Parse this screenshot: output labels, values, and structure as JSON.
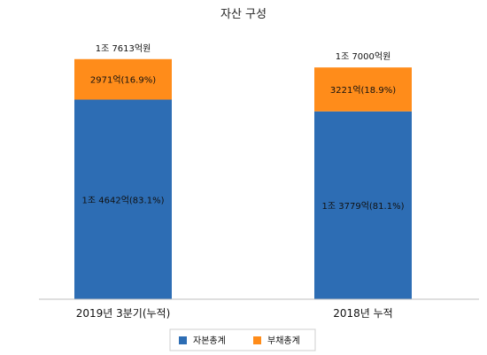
{
  "chart_data": {
    "type": "bar",
    "stacked": true,
    "title": "자산 구성",
    "categories": [
      "2019년 3분기(누적)",
      "2018년 누적"
    ],
    "totals": [
      17613,
      17000
    ],
    "total_labels": [
      "1조 7613억원",
      "1조 7000억원"
    ],
    "series": [
      {
        "name": "자본총계",
        "color": "#2D6DB4",
        "values": [
          14642,
          13779
        ],
        "labels": [
          "1조 4642억(83.1%)",
          "1조 3779억(81.1%)"
        ]
      },
      {
        "name": "부채총계",
        "color": "#FF8C1A",
        "values": [
          2971,
          3221
        ],
        "labels": [
          "2971억(16.9%)",
          "3221억(18.9%)"
        ]
      }
    ],
    "ylim": [
      0,
      20000
    ],
    "grid": false,
    "legend": "bottom"
  }
}
